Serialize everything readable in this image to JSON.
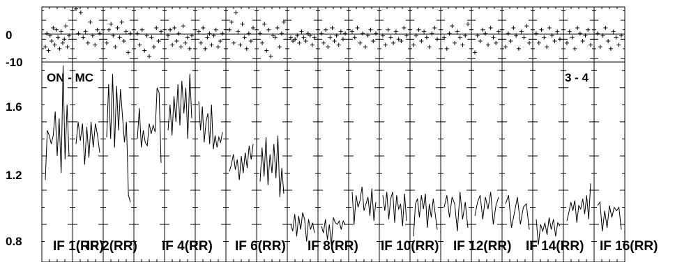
{
  "chart_data": {
    "type": "line",
    "title": "",
    "top_label_left": "ON - MC",
    "top_label_right": "3 - 4",
    "residual_panel": {
      "yticks": [
        "0",
        "-10"
      ],
      "ylim": [
        -12,
        17
      ]
    },
    "main_panel": {
      "yticks": [
        "1.6",
        "1.2",
        "0.8"
      ],
      "ylim": [
        0.78,
        1.95
      ]
    },
    "if_labels": [
      "IF 1(RR)",
      "IF 2(RR)",
      "IF 4(RR)",
      "IF 6(RR)",
      "IF 8(RR)",
      "IF 10(RR)",
      "IF 12(RR)",
      "IF 14(RR)",
      "IF 16(RR)"
    ],
    "series": [
      {
        "values": [
          1.26,
          1.55,
          1.52,
          1.47,
          1.52,
          1.66,
          1.4,
          1.62,
          1.3,
          1.93,
          1.38,
          1.7,
          1.4
        ]
      },
      {
        "values": [
          1.47,
          1.6,
          1.49,
          1.59,
          1.35,
          1.57,
          1.39,
          1.6,
          1.45,
          1.59,
          1.52,
          1.42
        ]
      },
      {
        "values": [
          1.51,
          1.82,
          1.5,
          1.88,
          1.45,
          1.81,
          1.55,
          1.79,
          1.63,
          1.48,
          1.6,
          1.17,
          1.13
        ]
      },
      {
        "values": [
          1.5,
          1.68,
          1.45,
          1.55,
          1.48,
          1.46,
          1.59,
          1.53,
          1.58,
          1.54,
          1.8,
          1.77,
          1.36
        ]
      },
      {
        "values": [
          1.55,
          1.7,
          1.52,
          1.75,
          1.6,
          1.82,
          1.58,
          1.84,
          1.65,
          1.8,
          1.5,
          1.88,
          1.62
        ]
      },
      {
        "values": [
          1.72,
          1.55,
          1.69,
          1.48,
          1.6,
          1.65,
          1.47,
          1.7,
          1.44,
          1.52,
          1.45,
          1.51,
          1.48,
          1.54
        ]
      },
      {
        "values": [
          1.31,
          1.35,
          1.41,
          1.32,
          1.38,
          1.26,
          1.4,
          1.3,
          1.42,
          1.33,
          1.46,
          1.38,
          1.47
        ]
      },
      {
        "values": [
          1.25,
          1.45,
          1.28,
          1.51,
          1.23,
          1.41,
          1.3,
          1.47,
          1.27,
          1.52,
          1.16,
          1.33,
          1.18
        ]
      },
      {
        "values": [
          1.0,
          0.96,
          1.06,
          0.93,
          1.05,
          0.97,
          1.07,
          1.03,
          0.9,
          1.03,
          0.97,
          1.01,
          0.95
        ]
      },
      {
        "values": [
          0.99,
          0.95,
          1.03,
          0.91,
          1.0,
          0.88,
          1.04,
          1.01,
          1.0,
          1.02,
          0.97,
          1.02,
          1.0
        ]
      },
      {
        "values": [
          1.19,
          1.0,
          1.17,
          1.1,
          1.14,
          1.22,
          1.08,
          1.12,
          1.16,
          1.05,
          1.21,
          1.02,
          1.13
        ]
      },
      {
        "values": [
          1.17,
          1.08,
          1.19,
          1.03,
          1.15,
          1.19,
          1.01,
          1.17,
          1.09,
          1.12,
          0.99,
          1.18,
          1.02
        ]
      },
      {
        "values": [
          0.93,
          1.12,
          1.15,
          1.04,
          1.17,
          1.09,
          1.18,
          0.98,
          1.12,
          1.04,
          1.15,
          1.06,
          0.97
        ]
      },
      {
        "values": [
          1.1,
          1.17,
          1.04,
          1.16,
          1.12,
          0.96,
          1.19,
          1.03,
          1.13,
          0.98
        ]
      },
      {
        "values": [
          1.05,
          1.13,
          1.17,
          1.03,
          1.16,
          1.09,
          1.19,
          1.0,
          1.11,
          1.16
        ]
      },
      {
        "values": [
          1.12,
          1.17,
          0.98,
          1.07,
          1.16,
          1.0,
          1.1,
          1.12,
          0.97
        ]
      },
      {
        "values": [
          1.03,
          0.88,
          1.0,
          0.96,
          1.01,
          0.94,
          1.04,
          0.97,
          1.03,
          0.93,
          1.01,
          0.99
        ]
      },
      {
        "values": [
          1.02,
          1.07,
          1.13,
          1.08,
          1.14,
          1.01,
          1.11,
          1.09,
          1.15,
          1.06,
          1.17,
          1.03,
          1.24
        ]
      },
      {
        "values": [
          1.11,
          1.13,
          0.96,
          1.08,
          0.98,
          1.11,
          1.04,
          1.1,
          1.08,
          1.1,
          0.97
        ]
      }
    ],
    "residuals": [
      [
        -4,
        3,
        -6,
        2,
        -1,
        6,
        -3,
        5,
        1,
        -5,
        4,
        -2,
        0,
        7,
        -4,
        2
      ],
      [
        16,
        3,
        14,
        1,
        4,
        -2,
        9,
        2,
        -3,
        5,
        3
      ],
      [
        -2,
        5,
        8,
        2,
        -4,
        6,
        1,
        9,
        -1,
        4,
        -7,
        3
      ],
      [
        3,
        -3,
        5,
        -6,
        2,
        -9,
        1,
        -4,
        6,
        -1,
        4
      ],
      [
        2,
        5,
        -3,
        6,
        -1,
        3,
        -4,
        7,
        -2,
        1,
        -5,
        2
      ],
      [
        4,
        -2,
        6,
        -5,
        1,
        3,
        -3,
        2,
        5,
        -4,
        -1,
        3
      ],
      [
        5,
        9,
        -2,
        14,
        4,
        -3,
        8,
        1,
        -5,
        3,
        -1,
        6
      ],
      [
        3,
        -2,
        8,
        -6,
        5,
        -9,
        2,
        1,
        6,
        -4,
        3,
        9
      ],
      [
        1,
        -1,
        0,
        2,
        -2,
        4,
        1,
        -1,
        3,
        2,
        -3,
        1
      ],
      [
        3,
        -2,
        5,
        -4,
        1,
        6,
        -1,
        2,
        -3,
        4,
        0,
        3
      ],
      [
        4,
        1,
        6,
        -2,
        3,
        -4,
        2,
        5,
        -1,
        3
      ],
      [
        2,
        -3,
        5,
        1,
        -2,
        4,
        0,
        -1,
        6,
        2
      ],
      [
        -3,
        2,
        5,
        -1,
        4,
        1,
        -4,
        3,
        6,
        0
      ],
      [
        1,
        -5,
        3,
        7,
        -2,
        4,
        1,
        -3,
        2,
        8
      ],
      [
        -7,
        2,
        -1,
        5,
        3,
        -3,
        6,
        1,
        -2,
        4
      ],
      [
        -4,
        3,
        -1,
        6,
        2,
        -5,
        4,
        1,
        7,
        -2
      ],
      [
        3,
        -2,
        5,
        1,
        -4,
        6,
        2,
        -1,
        4,
        0
      ],
      [
        -2,
        4,
        1,
        -5,
        6,
        3,
        -1,
        2,
        5,
        -3
      ],
      [
        3,
        -4,
        2,
        6,
        -1,
        -5,
        4,
        1,
        -3,
        2
      ]
    ]
  }
}
